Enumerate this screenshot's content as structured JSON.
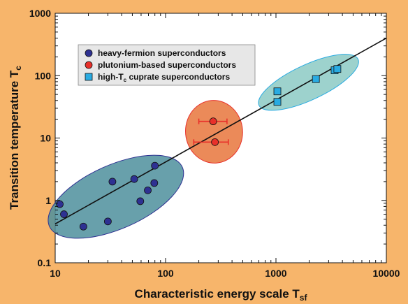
{
  "chart_data": {
    "type": "scatter",
    "xscale": "log",
    "yscale": "log",
    "xlim": [
      10,
      10000
    ],
    "ylim": [
      0.1,
      1000
    ],
    "x_ticks": [
      "10",
      "100",
      "1000",
      "10000"
    ],
    "y_ticks": [
      "0.1",
      "1",
      "10",
      "100",
      "1000"
    ],
    "xlabel": "Characteristic energy scale T",
    "xlabel_sub": "sf",
    "ylabel": "Transition temperature T",
    "ylabel_sub": "c",
    "legend_position": "top-left",
    "grid": false,
    "series": [
      {
        "name": "heavy-fermion superconductors",
        "marker": "circle",
        "color": "#2e3192",
        "ellipse_color": "#4e8f9c",
        "points": [
          {
            "x": 11,
            "y": 0.87
          },
          {
            "x": 12,
            "y": 0.6
          },
          {
            "x": 18,
            "y": 0.38
          },
          {
            "x": 30,
            "y": 0.46
          },
          {
            "x": 33,
            "y": 2.0
          },
          {
            "x": 52,
            "y": 2.2
          },
          {
            "x": 59,
            "y": 0.97
          },
          {
            "x": 69,
            "y": 1.45
          },
          {
            "x": 79,
            "y": 1.9
          },
          {
            "x": 80,
            "y": 3.6
          }
        ]
      },
      {
        "name": "plutonium-based superconductors",
        "marker": "circle",
        "color": "#e8302a",
        "ellipse_color": "#e8763c",
        "points": [
          {
            "x": 270,
            "y": 18.5,
            "xerr": [
              200,
              360
            ]
          },
          {
            "x": 280,
            "y": 8.6,
            "xerr": [
              180,
              370
            ]
          }
        ]
      },
      {
        "name": "high-T",
        "name_sub": "c",
        "name_rest": " cuprate superconductors",
        "marker": "square",
        "color": "#29abe2",
        "ellipse_color": "#8ccac4",
        "points": [
          {
            "x": 1030,
            "y": 56
          },
          {
            "x": 1030,
            "y": 38
          },
          {
            "x": 2300,
            "y": 88
          },
          {
            "x": 3400,
            "y": 122
          },
          {
            "x": 3600,
            "y": 128
          }
        ]
      }
    ],
    "fit_line": {
      "x": [
        10,
        10000
      ],
      "y": [
        0.42,
        400
      ],
      "color": "#111111"
    }
  }
}
